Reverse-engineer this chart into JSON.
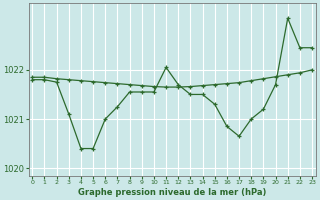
{
  "xlabel": "Graphe pression niveau de la mer (hPa)",
  "bg_color": "#cce8e8",
  "grid_color": "#ffffff",
  "line_color": "#2d6a2d",
  "x": [
    0,
    1,
    2,
    3,
    4,
    5,
    6,
    7,
    8,
    9,
    10,
    11,
    12,
    13,
    14,
    15,
    16,
    17,
    18,
    19,
    20,
    21,
    22,
    23
  ],
  "y_main": [
    1021.8,
    1021.8,
    1021.75,
    1021.1,
    1020.4,
    1020.4,
    1021.0,
    1021.25,
    1021.55,
    1021.55,
    1021.55,
    1022.05,
    1021.7,
    1021.5,
    1021.5,
    1021.3,
    1020.85,
    1020.65,
    1021.0,
    1021.2,
    1021.7,
    1023.05,
    1022.45,
    1022.45
  ],
  "y_trend": [
    1021.85,
    1021.85,
    1021.82,
    1021.8,
    1021.78,
    1021.76,
    1021.74,
    1021.72,
    1021.7,
    1021.68,
    1021.66,
    1021.65,
    1021.65,
    1021.66,
    1021.68,
    1021.7,
    1021.72,
    1021.74,
    1021.78,
    1021.82,
    1021.86,
    1021.9,
    1021.94,
    1022.0
  ],
  "ylim": [
    1019.85,
    1023.35
  ],
  "yticks": [
    1020,
    1021,
    1022
  ],
  "xticks": [
    0,
    1,
    2,
    3,
    4,
    5,
    6,
    7,
    8,
    9,
    10,
    11,
    12,
    13,
    14,
    15,
    16,
    17,
    18,
    19,
    20,
    21,
    22,
    23
  ],
  "xlim": [
    -0.3,
    23.3
  ]
}
